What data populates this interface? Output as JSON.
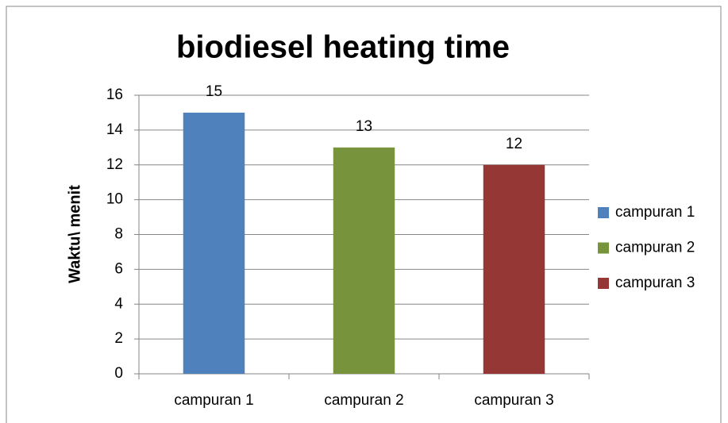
{
  "chart_data": {
    "type": "bar",
    "title": "biodiesel heating time",
    "y_label": "Waktu\\ menit",
    "categories": [
      "campuran 1",
      "campuran 2",
      "campuran 3"
    ],
    "values": [
      15,
      13,
      12
    ],
    "colors": [
      "#4f81bd",
      "#77933c",
      "#953735"
    ],
    "ylim": [
      0,
      16
    ],
    "yticks": [
      0,
      2,
      4,
      6,
      8,
      10,
      12,
      14,
      16
    ],
    "grid": true,
    "legend": "right"
  }
}
